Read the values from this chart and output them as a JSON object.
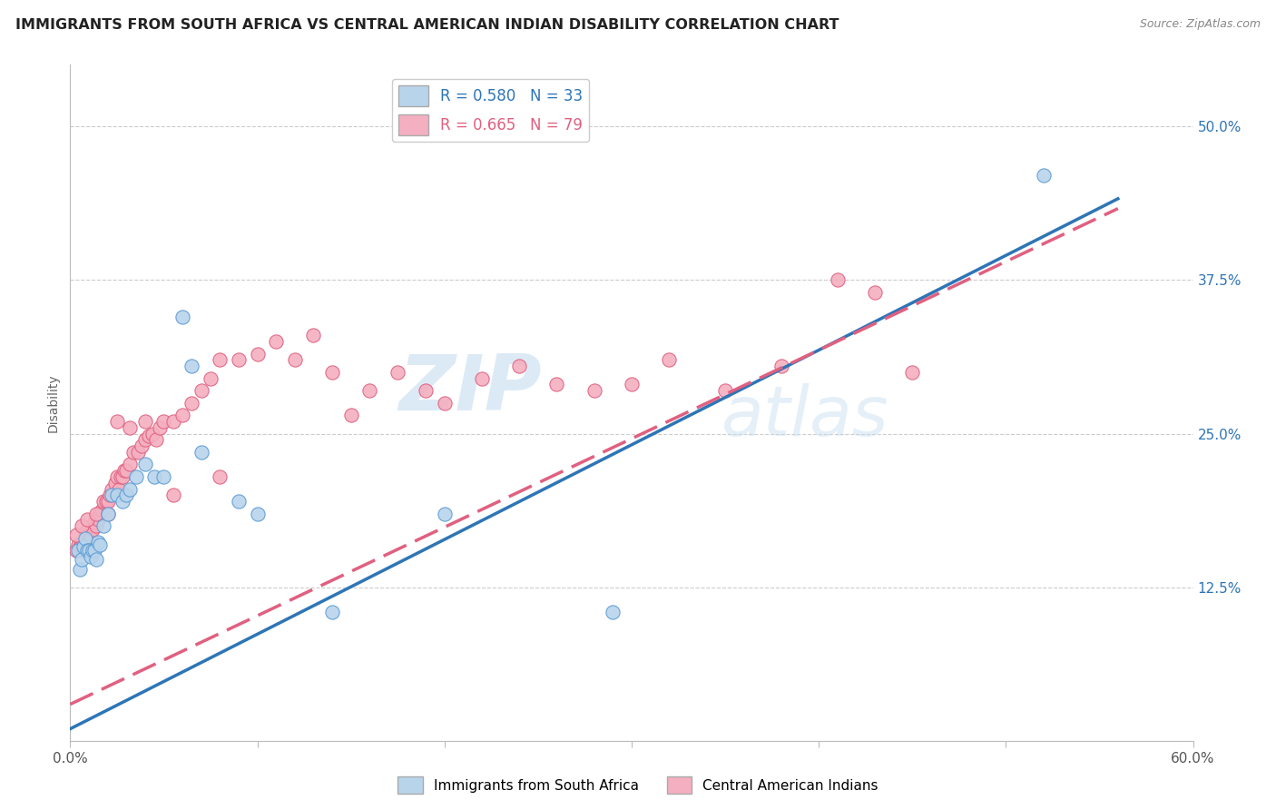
{
  "title": "IMMIGRANTS FROM SOUTH AFRICA VS CENTRAL AMERICAN INDIAN DISABILITY CORRELATION CHART",
  "source": "Source: ZipAtlas.com",
  "ylabel": "Disability",
  "x_min": 0.0,
  "x_max": 0.6,
  "y_min": 0.0,
  "y_max": 0.55,
  "x_ticks": [
    0.0,
    0.1,
    0.2,
    0.3,
    0.4,
    0.5,
    0.6
  ],
  "x_tick_labels": [
    "0.0%",
    "",
    "",
    "",
    "",
    "",
    "60.0%"
  ],
  "y_ticks": [
    0.0,
    0.125,
    0.25,
    0.375,
    0.5
  ],
  "y_tick_labels": [
    "",
    "12.5%",
    "25.0%",
    "37.5%",
    "50.0%"
  ],
  "watermark_zip": "ZIP",
  "watermark_atlas": "atlas",
  "series1_label": "Immigrants from South Africa",
  "series1_color": "#b8d4eb",
  "series1_edge_color": "#5b9bd5",
  "series1_R": "0.580",
  "series1_N": "33",
  "series1_line_color": "#2e75b6",
  "series2_label": "Central American Indians",
  "series2_color": "#f4afc0",
  "series2_edge_color": "#e06080",
  "series2_R": "0.665",
  "series2_N": "79",
  "series2_line_color": "#e06080",
  "scatter1_x": [
    0.004,
    0.005,
    0.006,
    0.007,
    0.008,
    0.009,
    0.01,
    0.011,
    0.012,
    0.013,
    0.014,
    0.015,
    0.016,
    0.018,
    0.02,
    0.022,
    0.025,
    0.028,
    0.03,
    0.032,
    0.035,
    0.04,
    0.045,
    0.05,
    0.06,
    0.065,
    0.07,
    0.09,
    0.1,
    0.14,
    0.2,
    0.29,
    0.52
  ],
  "scatter1_y": [
    0.155,
    0.14,
    0.148,
    0.158,
    0.165,
    0.155,
    0.155,
    0.15,
    0.155,
    0.155,
    0.148,
    0.162,
    0.16,
    0.175,
    0.185,
    0.2,
    0.2,
    0.195,
    0.2,
    0.205,
    0.215,
    0.225,
    0.215,
    0.215,
    0.345,
    0.305,
    0.235,
    0.195,
    0.185,
    0.105,
    0.185,
    0.105,
    0.46
  ],
  "scatter2_x": [
    0.003,
    0.004,
    0.005,
    0.006,
    0.007,
    0.007,
    0.008,
    0.008,
    0.009,
    0.01,
    0.01,
    0.011,
    0.012,
    0.013,
    0.014,
    0.015,
    0.015,
    0.016,
    0.017,
    0.018,
    0.019,
    0.02,
    0.021,
    0.022,
    0.024,
    0.025,
    0.026,
    0.027,
    0.028,
    0.029,
    0.03,
    0.032,
    0.034,
    0.036,
    0.038,
    0.04,
    0.042,
    0.044,
    0.046,
    0.048,
    0.05,
    0.055,
    0.06,
    0.065,
    0.07,
    0.075,
    0.08,
    0.09,
    0.1,
    0.11,
    0.12,
    0.13,
    0.14,
    0.15,
    0.16,
    0.175,
    0.19,
    0.2,
    0.22,
    0.24,
    0.26,
    0.28,
    0.3,
    0.32,
    0.35,
    0.38,
    0.41,
    0.43,
    0.45,
    0.003,
    0.006,
    0.009,
    0.014,
    0.02,
    0.025,
    0.032,
    0.04,
    0.055,
    0.08
  ],
  "scatter2_y": [
    0.155,
    0.16,
    0.158,
    0.16,
    0.162,
    0.155,
    0.158,
    0.17,
    0.16,
    0.162,
    0.168,
    0.165,
    0.172,
    0.178,
    0.175,
    0.182,
    0.18,
    0.185,
    0.188,
    0.195,
    0.195,
    0.195,
    0.2,
    0.205,
    0.21,
    0.215,
    0.205,
    0.215,
    0.215,
    0.22,
    0.22,
    0.225,
    0.235,
    0.235,
    0.24,
    0.245,
    0.248,
    0.25,
    0.245,
    0.255,
    0.26,
    0.26,
    0.265,
    0.275,
    0.285,
    0.295,
    0.31,
    0.31,
    0.315,
    0.325,
    0.31,
    0.33,
    0.3,
    0.265,
    0.285,
    0.3,
    0.285,
    0.275,
    0.295,
    0.305,
    0.29,
    0.285,
    0.29,
    0.31,
    0.285,
    0.305,
    0.375,
    0.365,
    0.3,
    0.168,
    0.175,
    0.18,
    0.185,
    0.185,
    0.26,
    0.255,
    0.26,
    0.2,
    0.215
  ]
}
